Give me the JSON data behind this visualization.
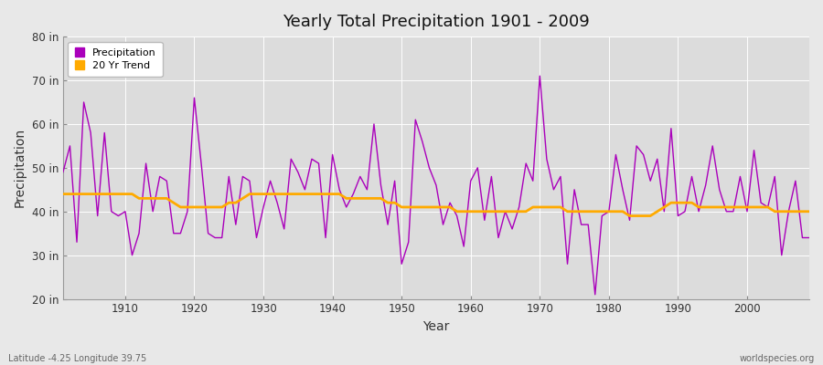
{
  "title": "Yearly Total Precipitation 1901 - 2009",
  "xlabel": "Year",
  "ylabel": "Precipitation",
  "lat_lon_label": "Latitude -4.25 Longitude 39.75",
  "source_label": "worldspecies.org",
  "fig_bg_color": "#e8e8e8",
  "plot_bg_color": "#dcdcdc",
  "grid_color": "#ffffff",
  "precip_color": "#aa00bb",
  "trend_color": "#ffaa00",
  "ylim": [
    20,
    80
  ],
  "yticks": [
    20,
    30,
    40,
    50,
    60,
    70,
    80
  ],
  "ytick_labels": [
    "20 in",
    "30 in",
    "40 in",
    "50 in",
    "60 in",
    "70 in",
    "80 in"
  ],
  "xlim": [
    1901,
    2009
  ],
  "xticks": [
    1910,
    1920,
    1930,
    1940,
    1950,
    1960,
    1970,
    1980,
    1990,
    2000
  ],
  "years": [
    1901,
    1902,
    1903,
    1904,
    1905,
    1906,
    1907,
    1908,
    1909,
    1910,
    1911,
    1912,
    1913,
    1914,
    1915,
    1916,
    1917,
    1918,
    1919,
    1920,
    1921,
    1922,
    1923,
    1924,
    1925,
    1926,
    1927,
    1928,
    1929,
    1930,
    1931,
    1932,
    1933,
    1934,
    1935,
    1936,
    1937,
    1938,
    1939,
    1940,
    1941,
    1942,
    1943,
    1944,
    1945,
    1946,
    1947,
    1948,
    1949,
    1950,
    1951,
    1952,
    1953,
    1954,
    1955,
    1956,
    1957,
    1958,
    1959,
    1960,
    1961,
    1962,
    1963,
    1964,
    1965,
    1966,
    1967,
    1968,
    1969,
    1970,
    1971,
    1972,
    1973,
    1974,
    1975,
    1976,
    1977,
    1978,
    1979,
    1980,
    1981,
    1982,
    1983,
    1984,
    1985,
    1986,
    1987,
    1988,
    1989,
    1990,
    1991,
    1992,
    1993,
    1994,
    1995,
    1996,
    1997,
    1998,
    1999,
    2000,
    2001,
    2002,
    2003,
    2004,
    2005,
    2006,
    2007,
    2008,
    2009
  ],
  "precip": [
    49,
    55,
    33,
    65,
    58,
    39,
    58,
    40,
    39,
    40,
    30,
    35,
    51,
    40,
    48,
    47,
    35,
    35,
    40,
    66,
    51,
    35,
    34,
    34,
    48,
    37,
    48,
    47,
    34,
    41,
    47,
    42,
    36,
    52,
    49,
    45,
    52,
    51,
    34,
    53,
    45,
    41,
    44,
    48,
    45,
    60,
    46,
    37,
    47,
    28,
    33,
    61,
    56,
    50,
    46,
    37,
    42,
    39,
    32,
    47,
    50,
    38,
    48,
    34,
    40,
    36,
    41,
    51,
    47,
    71,
    52,
    45,
    48,
    28,
    45,
    37,
    37,
    21,
    39,
    40,
    53,
    45,
    38,
    55,
    53,
    47,
    52,
    40,
    59,
    39,
    40,
    48,
    40,
    46,
    55,
    45,
    40,
    40,
    48,
    40,
    54,
    42,
    41,
    48,
    30,
    40,
    47,
    34,
    34
  ],
  "trend": [
    44,
    44,
    44,
    44,
    44,
    44,
    44,
    44,
    44,
    44,
    44,
    43,
    43,
    43,
    43,
    43,
    42,
    41,
    41,
    41,
    41,
    41,
    41,
    41,
    42,
    42,
    43,
    44,
    44,
    44,
    44,
    44,
    44,
    44,
    44,
    44,
    44,
    44,
    44,
    44,
    44,
    43,
    43,
    43,
    43,
    43,
    43,
    42,
    42,
    41,
    41,
    41,
    41,
    41,
    41,
    41,
    41,
    40,
    40,
    40,
    40,
    40,
    40,
    40,
    40,
    40,
    40,
    40,
    41,
    41,
    41,
    41,
    41,
    40,
    40,
    40,
    40,
    40,
    40,
    40,
    40,
    40,
    39,
    39,
    39,
    39,
    40,
    41,
    42,
    42,
    42,
    42,
    41,
    41,
    41,
    41,
    41,
    41,
    41,
    41,
    41,
    41,
    41,
    40,
    40,
    40,
    40,
    40,
    40
  ]
}
